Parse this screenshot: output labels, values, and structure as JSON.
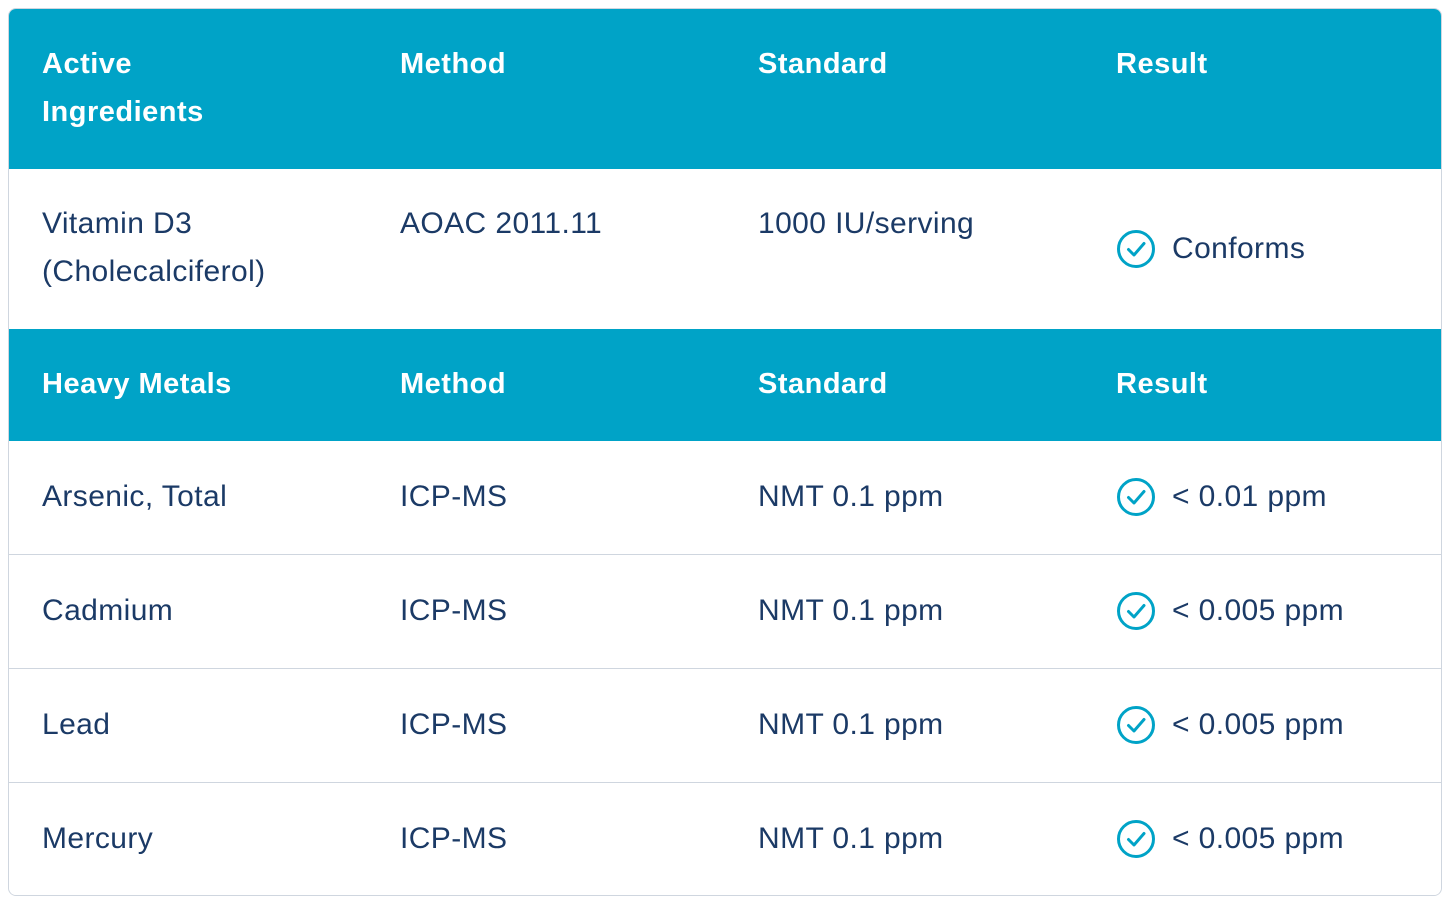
{
  "active_section": {
    "headers": {
      "name": "Active\nIngredients",
      "method": "Method",
      "standard": "Standard",
      "result": "Result"
    },
    "rows": [
      {
        "name_line1": "Vitamin D3",
        "name_line2": "(Cholecalciferol)",
        "method": "AOAC 2011.11",
        "standard": "1000 IU/serving",
        "result": "Conforms"
      }
    ]
  },
  "metals_section": {
    "headers": {
      "name": "Heavy Metals",
      "method": "Method",
      "standard": "Standard",
      "result": "Result"
    },
    "rows": [
      {
        "name": "Arsenic, Total",
        "method": "ICP-MS",
        "standard": "NMT 0.1 ppm",
        "result": "< 0.01 ppm"
      },
      {
        "name": "Cadmium",
        "method": "ICP-MS",
        "standard": "NMT 0.1 ppm",
        "result": "< 0.005 ppm"
      },
      {
        "name": "Lead",
        "method": "ICP-MS",
        "standard": "NMT 0.1 ppm",
        "result": "< 0.005 ppm"
      },
      {
        "name": "Mercury",
        "method": "ICP-MS",
        "standard": "NMT 0.1 ppm",
        "result": "< 0.005 ppm"
      }
    ]
  },
  "icons": {
    "result_status": "check-circle-icon"
  },
  "colors": {
    "header_bg": "#00a3c7",
    "text": "#1b3a66",
    "check": "#00a3c7",
    "divider": "#cfd6df"
  }
}
